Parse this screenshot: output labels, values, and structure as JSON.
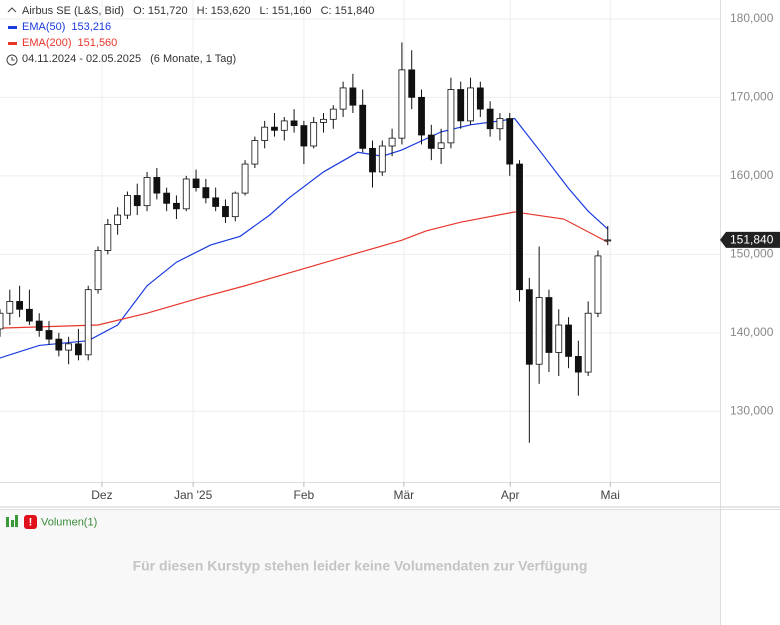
{
  "chart_data": {
    "type": "candlestick",
    "header": {
      "instrument": "Airbus SE (L&S, Bid)",
      "open": "O: 151,720",
      "high": "H: 153,620",
      "low": "L: 151,160",
      "close": "C: 151,840",
      "range": "04.11.2024 - 02.05.2025",
      "period": "(6 Monate, 1 Tag)"
    },
    "last_label": "151,840",
    "x": [
      0,
      2,
      4,
      6,
      8,
      10,
      12,
      14,
      16,
      18,
      20,
      22,
      24,
      26,
      28,
      30,
      32,
      34,
      36,
      38,
      40,
      42,
      44,
      46,
      48,
      50,
      52,
      54,
      56,
      58,
      60,
      62,
      64,
      66,
      68,
      70,
      72,
      74,
      76,
      78,
      80,
      82,
      84,
      86,
      88,
      90,
      92,
      94,
      96,
      98,
      100,
      102,
      104,
      106,
      108,
      110,
      112,
      114,
      116,
      118,
      120,
      122,
      124
    ],
    "open": [
      140500,
      142500,
      144000,
      143000,
      141500,
      140300,
      139200,
      137800,
      138600,
      137200,
      145500,
      150500,
      153800,
      155000,
      157500,
      156200,
      159800,
      157800,
      156500,
      155800,
      159600,
      158500,
      157200,
      156100,
      154800,
      157800,
      161500,
      164500,
      166200,
      165800,
      167000,
      166400,
      163800,
      166800,
      167200,
      168500,
      171200,
      169000,
      163500,
      160500,
      163800,
      164800,
      173500,
      170000,
      165200,
      163500,
      164200,
      171000,
      167000,
      171200,
      168500,
      166000,
      167300,
      161500,
      145500,
      136000,
      144500,
      137500,
      141000,
      137000,
      135000,
      142500,
      151720
    ],
    "high": [
      143000,
      145500,
      146000,
      145500,
      142500,
      141500,
      140000,
      139500,
      140500,
      146000,
      151000,
      154500,
      156000,
      158000,
      159000,
      160500,
      161000,
      158500,
      157500,
      160000,
      160800,
      159600,
      158500,
      157000,
      158000,
      162000,
      165000,
      167000,
      168000,
      167500,
      168500,
      167000,
      167500,
      168000,
      169000,
      172000,
      173000,
      171000,
      164500,
      164500,
      166000,
      177000,
      176000,
      171000,
      166500,
      166000,
      172500,
      172000,
      172500,
      172000,
      169500,
      168000,
      168000,
      162000,
      147000,
      151000,
      145500,
      143000,
      142000,
      139000,
      144000,
      150500,
      153620
    ],
    "low": [
      139500,
      141000,
      142000,
      141000,
      139500,
      138500,
      137000,
      136000,
      136500,
      136500,
      145000,
      150000,
      152500,
      154500,
      155000,
      155500,
      157000,
      155500,
      154500,
      155500,
      158000,
      156500,
      155500,
      154000,
      154200,
      157500,
      161000,
      163500,
      165000,
      164500,
      165500,
      161500,
      163500,
      165500,
      166000,
      167500,
      168000,
      163000,
      158500,
      160000,
      162500,
      164000,
      168500,
      164000,
      162000,
      161500,
      163500,
      166000,
      166500,
      167500,
      165000,
      164500,
      160000,
      144000,
      126000,
      133500,
      135000,
      134500,
      135500,
      132000,
      134500,
      142000,
      151160
    ],
    "close": [
      142500,
      144000,
      143000,
      141500,
      140300,
      139200,
      137800,
      138600,
      137200,
      145500,
      150500,
      153800,
      155000,
      157500,
      156200,
      159800,
      157800,
      156500,
      155800,
      159600,
      158500,
      157200,
      156100,
      154800,
      157800,
      161500,
      164500,
      166200,
      165800,
      167000,
      166400,
      163800,
      166800,
      167200,
      168500,
      171200,
      169000,
      163500,
      160500,
      163800,
      164800,
      173500,
      170000,
      165200,
      163500,
      164200,
      171000,
      167000,
      171200,
      168500,
      166000,
      167300,
      161500,
      145500,
      136000,
      144500,
      137500,
      141000,
      137000,
      135000,
      142500,
      149800,
      151840
    ],
    "series": [
      {
        "name": "EMA(50)",
        "last_label": "153,216",
        "color": "#1a3be0",
        "x": [
          0,
          8,
          18,
          24,
          30,
          36,
          43,
          49,
          55,
          59,
          66,
          73,
          78,
          82,
          90,
          96,
          102,
          105,
          110,
          116,
          120,
          124
        ],
        "values": [
          136800,
          138400,
          139000,
          141000,
          146000,
          149000,
          151200,
          152300,
          155000,
          157200,
          160500,
          163000,
          162500,
          163300,
          165600,
          166500,
          167000,
          167300,
          163300,
          158400,
          155500,
          153216
        ]
      },
      {
        "name": "EMA(200)",
        "last_label": "151,560",
        "color": "#e8352a",
        "x": [
          0,
          20,
          30,
          41,
          50,
          61,
          72,
          82,
          87,
          94,
          105,
          115,
          124
        ],
        "values": [
          140600,
          141000,
          142500,
          144500,
          146000,
          148000,
          150000,
          151800,
          153000,
          154100,
          155400,
          154500,
          151560
        ]
      }
    ],
    "xlim": [
      0,
      146.9
    ],
    "xticks": [
      {
        "value": 20.8,
        "label": "Dez"
      },
      {
        "value": 39.4,
        "label": "Jan '25"
      },
      {
        "value": 62,
        "label": "Feb"
      },
      {
        "value": 82.4,
        "label": "Mär"
      },
      {
        "value": 104.1,
        "label": "Apr"
      },
      {
        "value": 124.5,
        "label": "Mai"
      }
    ],
    "ylim": [
      121000,
      182400
    ],
    "yticks": [
      {
        "value": 130000,
        "label": "130,000"
      },
      {
        "value": 140000,
        "label": "140,000"
      },
      {
        "value": 150000,
        "label": "150,000"
      },
      {
        "value": 160000,
        "label": "160,000"
      },
      {
        "value": 170000,
        "label": "170,000"
      },
      {
        "value": 180000,
        "label": "180,000"
      }
    ],
    "grid": true,
    "volume_panel": {
      "title": "Volumen(1)",
      "message": "Für diesen Kurstyp stehen leider keine Volumendaten zur Verfügung"
    }
  }
}
